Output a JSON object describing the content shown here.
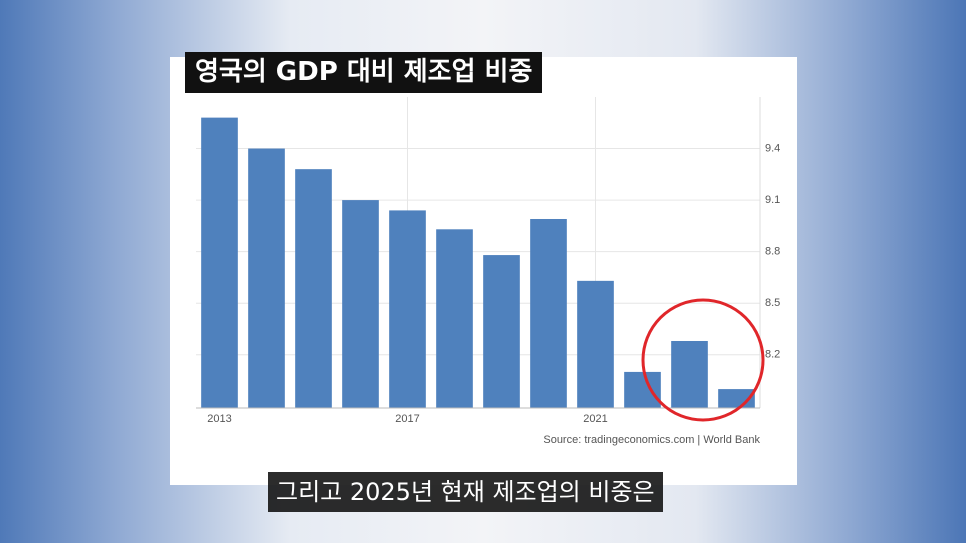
{
  "chart_data": {
    "type": "bar",
    "title": "영국의 GDP 대비 제조업 비중",
    "categories": [
      "2013",
      null,
      null,
      null,
      "2017",
      null,
      null,
      null,
      "2021",
      null,
      null,
      null
    ],
    "values": [
      9.58,
      9.4,
      9.28,
      9.1,
      9.04,
      8.93,
      8.78,
      8.99,
      8.63,
      8.1,
      8.28,
      8.0
    ],
    "color": "#4f81bd",
    "ylim": [
      7.89,
      9.7
    ],
    "yticks": [
      8.2,
      8.5,
      8.8,
      9.1,
      9.4
    ],
    "grid": true,
    "source": "Source: tradingeconomics.com | World Bank"
  },
  "caption": "그리고 2025년 현재 제조업의 비중은"
}
